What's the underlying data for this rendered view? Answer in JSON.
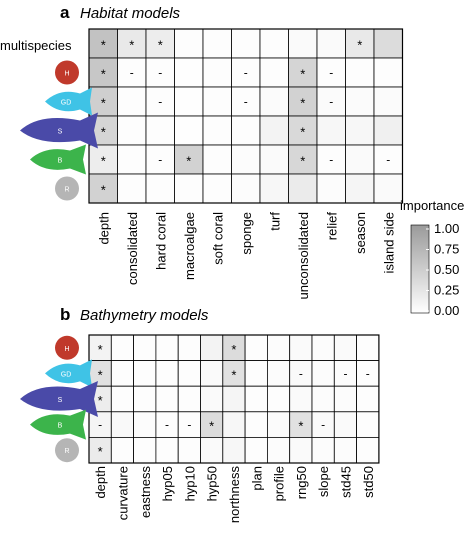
{
  "panels": {
    "a": {
      "letter": "a",
      "title": "Habitat models",
      "multispecies_label": "multispecies",
      "species_badges": [
        "H",
        "GD",
        "S",
        "B",
        "R"
      ]
    },
    "b": {
      "letter": "b",
      "title": "Bathymetry models",
      "species_badges": [
        "H",
        "GD",
        "S",
        "B",
        "R"
      ]
    }
  },
  "legend": {
    "title": "importance",
    "ticks": [
      "1.00",
      "0.75",
      "0.50",
      "0.25",
      "0.00"
    ]
  },
  "colors": {
    "cell_low": "#ffffff",
    "cell_high": "#9a9a9a",
    "grid": "#000000",
    "badge_H": "#c0392b",
    "badge_GD": "#3fc3e6",
    "badge_S": "#4a4aa8",
    "badge_B": "#3cb44b",
    "badge_R": "#b5b5b5"
  },
  "chart_data": [
    {
      "type": "heatmap",
      "title": "Habitat models",
      "columns": [
        "depth",
        "consolidated",
        "hard coral",
        "macroalgae",
        "soft coral",
        "sponge",
        "turf",
        "unconsolidated",
        "relief",
        "season",
        "island side"
      ],
      "rows": [
        "multispecies",
        "H",
        "GD",
        "S",
        "B",
        "R"
      ],
      "values": [
        [
          0.6,
          0.22,
          0.18,
          0.02,
          0.02,
          0.02,
          0.02,
          0.05,
          0.05,
          0.22,
          0.35
        ],
        [
          0.55,
          0.02,
          0.02,
          0.01,
          0.02,
          0.02,
          0.02,
          0.42,
          0.02,
          0.02,
          0.02
        ],
        [
          0.48,
          0.02,
          0.02,
          0.01,
          0.02,
          0.02,
          0.04,
          0.45,
          0.04,
          0.04,
          0.04
        ],
        [
          0.42,
          0.02,
          0.02,
          0.01,
          0.02,
          0.02,
          0.12,
          0.38,
          0.08,
          0.08,
          0.15
        ],
        [
          0.18,
          0.02,
          0.02,
          0.45,
          0.02,
          0.03,
          0.05,
          0.4,
          0.02,
          0.05,
          0.02
        ],
        [
          0.45,
          0.02,
          0.02,
          0.02,
          0.02,
          0.03,
          0.08,
          0.2,
          0.03,
          0.1,
          0.05
        ]
      ],
      "annotations": [
        [
          "*",
          "*",
          "*",
          "",
          "",
          "",
          "",
          "",
          "",
          "*",
          ""
        ],
        [
          "*",
          "-",
          "-",
          "",
          "",
          "-",
          "",
          "*",
          "-",
          "",
          ""
        ],
        [
          "*",
          "",
          "-",
          "",
          "",
          "-",
          "",
          "*",
          "-",
          "",
          ""
        ],
        [
          "*",
          "",
          "",
          "",
          "",
          "",
          "",
          "*",
          "",
          "",
          ""
        ],
        [
          "*",
          "",
          "-",
          "*",
          "",
          "",
          "",
          "*",
          "-",
          "",
          "-"
        ],
        [
          "*",
          "",
          "",
          "",
          "",
          "",
          "",
          "",
          "",
          "",
          ""
        ]
      ],
      "color_range": [
        0,
        1
      ]
    },
    {
      "type": "heatmap",
      "title": "Bathymetry models",
      "columns": [
        "depth",
        "curvature",
        "eastness",
        "hyp05",
        "hyp10",
        "hyp50",
        "northness",
        "plan",
        "profile",
        "rng50",
        "slope",
        "std45",
        "std50"
      ],
      "rows": [
        "H",
        "GD",
        "S",
        "B",
        "R"
      ],
      "values": [
        [
          0.12,
          0.02,
          0.02,
          0.02,
          0.02,
          0.12,
          0.35,
          0.02,
          0.03,
          0.05,
          0.03,
          0.05,
          0.02
        ],
        [
          0.3,
          0.02,
          0.02,
          0.02,
          0.02,
          0.05,
          0.3,
          0.02,
          0.03,
          0.05,
          0.03,
          0.03,
          0.02
        ],
        [
          0.18,
          0.02,
          0.02,
          0.02,
          0.02,
          0.05,
          0.1,
          0.02,
          0.02,
          0.05,
          0.03,
          0.03,
          0.02
        ],
        [
          0.1,
          0.06,
          0.03,
          0.02,
          0.02,
          0.35,
          0.08,
          0.02,
          0.04,
          0.3,
          0.05,
          0.05,
          0.02
        ],
        [
          0.2,
          0.02,
          0.02,
          0.02,
          0.02,
          0.05,
          0.08,
          0.02,
          0.03,
          0.05,
          0.03,
          0.03,
          0.02
        ]
      ],
      "annotations": [
        [
          "*",
          "",
          "",
          "",
          "",
          "",
          "*",
          "",
          "",
          "",
          "",
          "",
          ""
        ],
        [
          "*",
          "",
          "",
          "",
          "",
          "",
          "*",
          "",
          "",
          "-",
          "",
          "-",
          "-"
        ],
        [
          "*",
          "",
          "",
          "",
          "",
          "",
          "",
          "",
          "",
          "",
          "",
          "",
          ""
        ],
        [
          "-",
          "",
          "",
          "-",
          "-",
          "*",
          "",
          "",
          "",
          "*",
          "-",
          "",
          ""
        ],
        [
          "*",
          "",
          "",
          "",
          "",
          "",
          "",
          "",
          "",
          "",
          "",
          "",
          ""
        ]
      ],
      "color_range": [
        0,
        1
      ]
    }
  ]
}
